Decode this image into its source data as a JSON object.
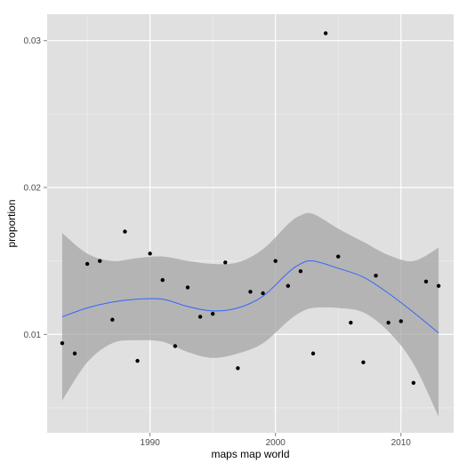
{
  "chart_data": {
    "type": "scatter",
    "title": "",
    "xlabel": "maps map world",
    "ylabel": "proportion",
    "xlim": [
      1981.8,
      2014.2
    ],
    "ylim": [
      0.0033,
      0.0318
    ],
    "x_ticks": [
      1990,
      2000,
      2010
    ],
    "x_tick_labels": [
      "1990",
      "2000",
      "2010"
    ],
    "y_ticks": [
      0.01,
      0.02,
      0.03
    ],
    "y_tick_labels": [
      "0.01",
      "0.02",
      "0.03"
    ],
    "grid": true,
    "colors": {
      "panel_background": "#e0e0e0",
      "grid_major": "#ffffff",
      "grid_minor": "#f0f0f0",
      "points": "#000000",
      "smooth_line": "#3366ff",
      "confidence_band": "#a6a6a6"
    },
    "points": [
      {
        "x": 1983,
        "y": 0.0094
      },
      {
        "x": 1984,
        "y": 0.0087
      },
      {
        "x": 1985,
        "y": 0.0148
      },
      {
        "x": 1986,
        "y": 0.015
      },
      {
        "x": 1987,
        "y": 0.011
      },
      {
        "x": 1988,
        "y": 0.017
      },
      {
        "x": 1989,
        "y": 0.0082
      },
      {
        "x": 1990,
        "y": 0.0155
      },
      {
        "x": 1991,
        "y": 0.0137
      },
      {
        "x": 1992,
        "y": 0.0092
      },
      {
        "x": 1993,
        "y": 0.0132
      },
      {
        "x": 1994,
        "y": 0.0112
      },
      {
        "x": 1995,
        "y": 0.0114
      },
      {
        "x": 1996,
        "y": 0.0149
      },
      {
        "x": 1997,
        "y": 0.0077
      },
      {
        "x": 1998,
        "y": 0.0129
      },
      {
        "x": 1999,
        "y": 0.0128
      },
      {
        "x": 2000,
        "y": 0.015
      },
      {
        "x": 2001,
        "y": 0.0133
      },
      {
        "x": 2002,
        "y": 0.0143
      },
      {
        "x": 2003,
        "y": 0.0087
      },
      {
        "x": 2004,
        "y": 0.0305
      },
      {
        "x": 2005,
        "y": 0.0153
      },
      {
        "x": 2006,
        "y": 0.0108
      },
      {
        "x": 2007,
        "y": 0.0081
      },
      {
        "x": 2008,
        "y": 0.014
      },
      {
        "x": 2009,
        "y": 0.0108
      },
      {
        "x": 2010,
        "y": 0.0109
      },
      {
        "x": 2011,
        "y": 0.0067
      },
      {
        "x": 2012,
        "y": 0.0136
      },
      {
        "x": 2013,
        "y": 0.0133
      }
    ],
    "smooth": {
      "x": [
        1983,
        1985,
        1987,
        1989,
        1991,
        1993,
        1995,
        1997,
        1999,
        2001,
        2002,
        2003,
        2005,
        2007,
        2009,
        2011,
        2013
      ],
      "y": [
        0.0112,
        0.0118,
        0.0122,
        0.0124,
        0.0124,
        0.0119,
        0.0116,
        0.0118,
        0.0126,
        0.0142,
        0.0148,
        0.015,
        0.0145,
        0.0139,
        0.0128,
        0.0115,
        0.0101
      ],
      "upper": [
        0.0169,
        0.0155,
        0.015,
        0.0152,
        0.0153,
        0.015,
        0.0148,
        0.0149,
        0.0158,
        0.0175,
        0.0181,
        0.0182,
        0.0172,
        0.0163,
        0.0154,
        0.015,
        0.0159
      ],
      "lower": [
        0.0055,
        0.0081,
        0.0094,
        0.0096,
        0.0095,
        0.0088,
        0.0084,
        0.0087,
        0.0094,
        0.0109,
        0.0115,
        0.0118,
        0.0118,
        0.0115,
        0.0102,
        0.008,
        0.0044
      ]
    }
  }
}
